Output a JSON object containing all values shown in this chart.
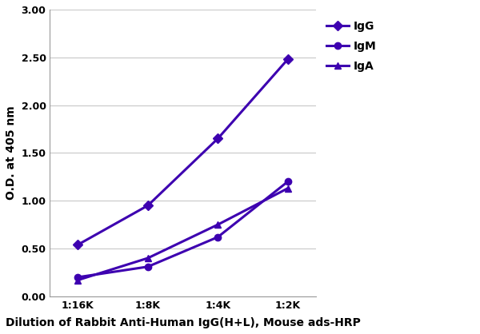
{
  "x_labels": [
    "1:16K",
    "1:8K",
    "1:4K",
    "1:2K"
  ],
  "x_values": [
    0,
    1,
    2,
    3
  ],
  "series": [
    {
      "name": "IgG",
      "values": [
        0.54,
        0.95,
        1.65,
        2.48
      ],
      "color": "#3D00B0",
      "marker": "D",
      "markersize": 6,
      "linewidth": 2.2,
      "zorder": 3
    },
    {
      "name": "IgM",
      "values": [
        0.2,
        0.31,
        0.62,
        1.2
      ],
      "color": "#3D00B0",
      "marker": "o",
      "markersize": 6,
      "linewidth": 2.2,
      "zorder": 3
    },
    {
      "name": "IgA",
      "values": [
        0.17,
        0.4,
        0.75,
        1.13
      ],
      "color": "#3D00B0",
      "marker": "^",
      "markersize": 6,
      "linewidth": 2.2,
      "zorder": 3
    }
  ],
  "ylabel": "O.D. at 405 nm",
  "xlabel": "Dilution of Rabbit Anti-Human IgG(H+L), Mouse ads-HRP",
  "ylim": [
    0.0,
    3.0
  ],
  "yticks": [
    0.0,
    0.5,
    1.0,
    1.5,
    2.0,
    2.5,
    3.0
  ],
  "background_color": "#ffffff",
  "grid_color": "#c8c8c8",
  "ylabel_fontsize": 10,
  "xlabel_fontsize": 10,
  "tick_fontsize": 9,
  "legend_fontsize": 10
}
